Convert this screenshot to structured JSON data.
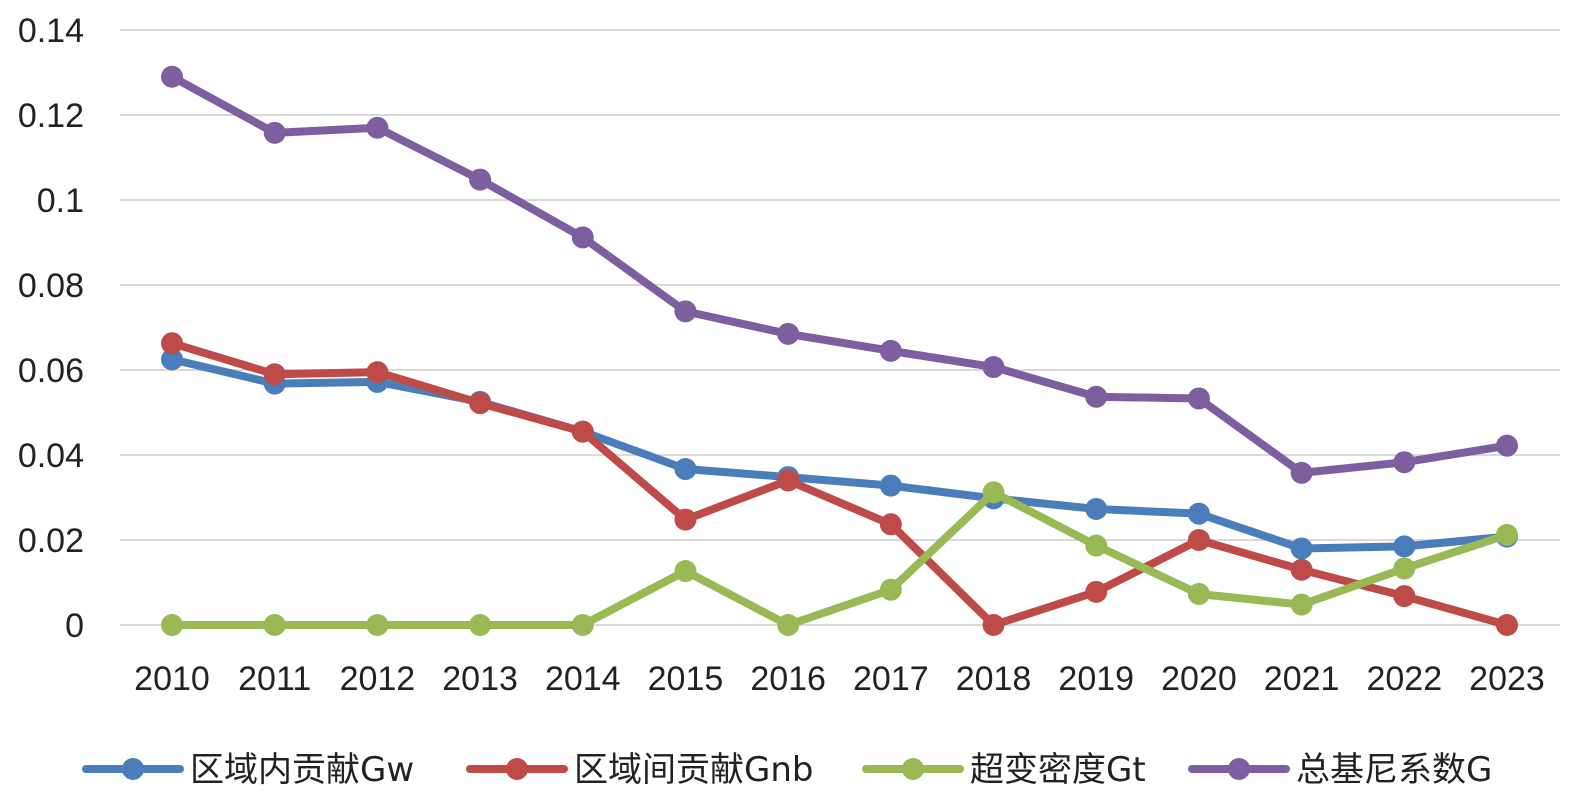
{
  "chart_data": {
    "type": "line",
    "title": "",
    "xlabel": "",
    "ylabel": "",
    "categories": [
      "2010",
      "2011",
      "2012",
      "2013",
      "2014",
      "2015",
      "2016",
      "2017",
      "2018",
      "2019",
      "2020",
      "2021",
      "2022",
      "2023"
    ],
    "ylim": [
      0,
      0.14
    ],
    "yticks": [
      {
        "value": 0,
        "label": "0"
      },
      {
        "value": 0.02,
        "label": "0.02"
      },
      {
        "value": 0.04,
        "label": "0.04"
      },
      {
        "value": 0.06,
        "label": "0.06"
      },
      {
        "value": 0.08,
        "label": "0.08"
      },
      {
        "value": 0.1,
        "label": "0.1"
      },
      {
        "value": 0.12,
        "label": "0.12"
      },
      {
        "value": 0.14,
        "label": "0.14"
      }
    ],
    "grid": true,
    "legend_position": "bottom",
    "series": [
      {
        "name": "区域内贡献Gw",
        "color": "#4a7ebb",
        "values": [
          0.0625,
          0.0568,
          0.0572,
          0.0525,
          0.0455,
          0.0367,
          0.0348,
          0.0328,
          0.0298,
          0.0273,
          0.0262,
          0.018,
          0.0185,
          0.0208
        ]
      },
      {
        "name": "区域间贡献Gnb",
        "color": "#be4b48",
        "values": [
          0.0663,
          0.059,
          0.0595,
          0.0522,
          0.0455,
          0.0248,
          0.034,
          0.0237,
          0.0,
          0.0078,
          0.02,
          0.013,
          0.0068,
          0.0
        ]
      },
      {
        "name": "超变密度Gt",
        "color": "#98b954",
        "values": [
          0.0,
          0.0,
          0.0,
          0.0,
          0.0,
          0.0127,
          0.0,
          0.0083,
          0.0312,
          0.0187,
          0.0073,
          0.0048,
          0.0133,
          0.0212
        ]
      },
      {
        "name": "总基尼系数G",
        "color": "#7d5fa0",
        "values": [
          0.129,
          0.1158,
          0.117,
          0.1048,
          0.0912,
          0.0738,
          0.0685,
          0.0645,
          0.0607,
          0.0537,
          0.0533,
          0.0358,
          0.0383,
          0.0422
        ]
      }
    ]
  }
}
